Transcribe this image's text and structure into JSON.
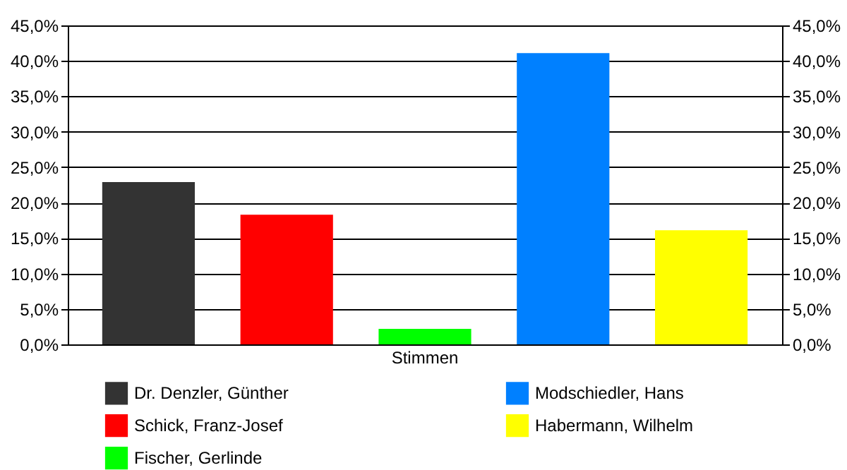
{
  "chart_data": {
    "type": "bar",
    "categories": [
      "Stimmen"
    ],
    "series": [
      {
        "name": "Dr. Denzler, Günther",
        "color": "#333333",
        "values": [
          22.9
        ]
      },
      {
        "name": "Schick, Franz-Josef",
        "color": "#ff0000",
        "values": [
          18.3
        ]
      },
      {
        "name": "Fischer, Gerlinde",
        "color": "#00ff00",
        "values": [
          2.2
        ]
      },
      {
        "name": "Modschiedler, Hans",
        "color": "#0080ff",
        "values": [
          41.1
        ]
      },
      {
        "name": "Habermann, Wilhelm",
        "color": "#ffff00",
        "values": [
          16.1
        ]
      }
    ],
    "ylim": [
      0,
      45
    ],
    "yticks": [
      {
        "value": 0,
        "label": "0,0%"
      },
      {
        "value": 5,
        "label": "5,0%"
      },
      {
        "value": 10,
        "label": "10,0%"
      },
      {
        "value": 15,
        "label": "15,0%"
      },
      {
        "value": 20,
        "label": "20,0%"
      },
      {
        "value": 25,
        "label": "25,0%"
      },
      {
        "value": 30,
        "label": "30,0%"
      },
      {
        "value": 35,
        "label": "35,0%"
      },
      {
        "value": 40,
        "label": "40,0%"
      },
      {
        "value": 45,
        "label": "45,0%"
      }
    ],
    "grid": "y",
    "legend": "bottom"
  }
}
